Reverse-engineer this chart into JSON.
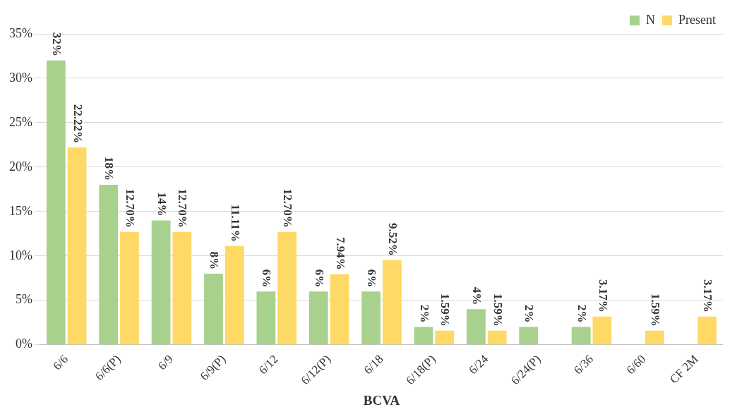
{
  "chart_data": {
    "type": "bar",
    "xlabel": "BCVA",
    "categories": [
      "6/6",
      "6/6(P)",
      "6/9",
      "6/9(P)",
      "6/12",
      "6/12(P)",
      "6/18",
      "6/18(P)",
      "6/24",
      "6/24(P)",
      "6/36",
      "6/60",
      "CF 2M"
    ],
    "series": [
      {
        "name": "N",
        "color": "#a9d18e",
        "values": [
          32,
          18,
          14,
          8,
          6,
          6,
          6,
          2,
          4,
          2,
          2,
          null,
          null
        ],
        "value_labels": [
          "32%",
          "18%",
          "14%",
          "8%",
          "6%",
          "6%",
          "6%",
          "2%",
          "4%",
          "2%",
          "2%",
          null,
          null
        ]
      },
      {
        "name": "Present",
        "color": "#ffd966",
        "values": [
          22.22,
          12.7,
          12.7,
          11.11,
          12.7,
          7.94,
          9.52,
          1.59,
          1.59,
          null,
          3.17,
          1.59,
          3.17
        ],
        "value_labels": [
          "22.22%",
          "12.70%",
          "12.70%",
          "11.11%",
          "12.70%",
          "7.94%",
          "9.52%",
          "1.59%",
          "1.59%",
          null,
          "3.17%",
          "1.59%",
          "3.17%"
        ]
      }
    ],
    "ylim": [
      0,
      35
    ],
    "yticks": [
      {
        "value": 0,
        "label": "0%"
      },
      {
        "value": 5,
        "label": "5%"
      },
      {
        "value": 10,
        "label": "10%"
      },
      {
        "value": 15,
        "label": "15%"
      },
      {
        "value": 20,
        "label": "20%"
      },
      {
        "value": 25,
        "label": "25%"
      },
      {
        "value": 30,
        "label": "30%"
      },
      {
        "value": 35,
        "label": "35%"
      }
    ],
    "grid": "y",
    "legend": "top right"
  }
}
